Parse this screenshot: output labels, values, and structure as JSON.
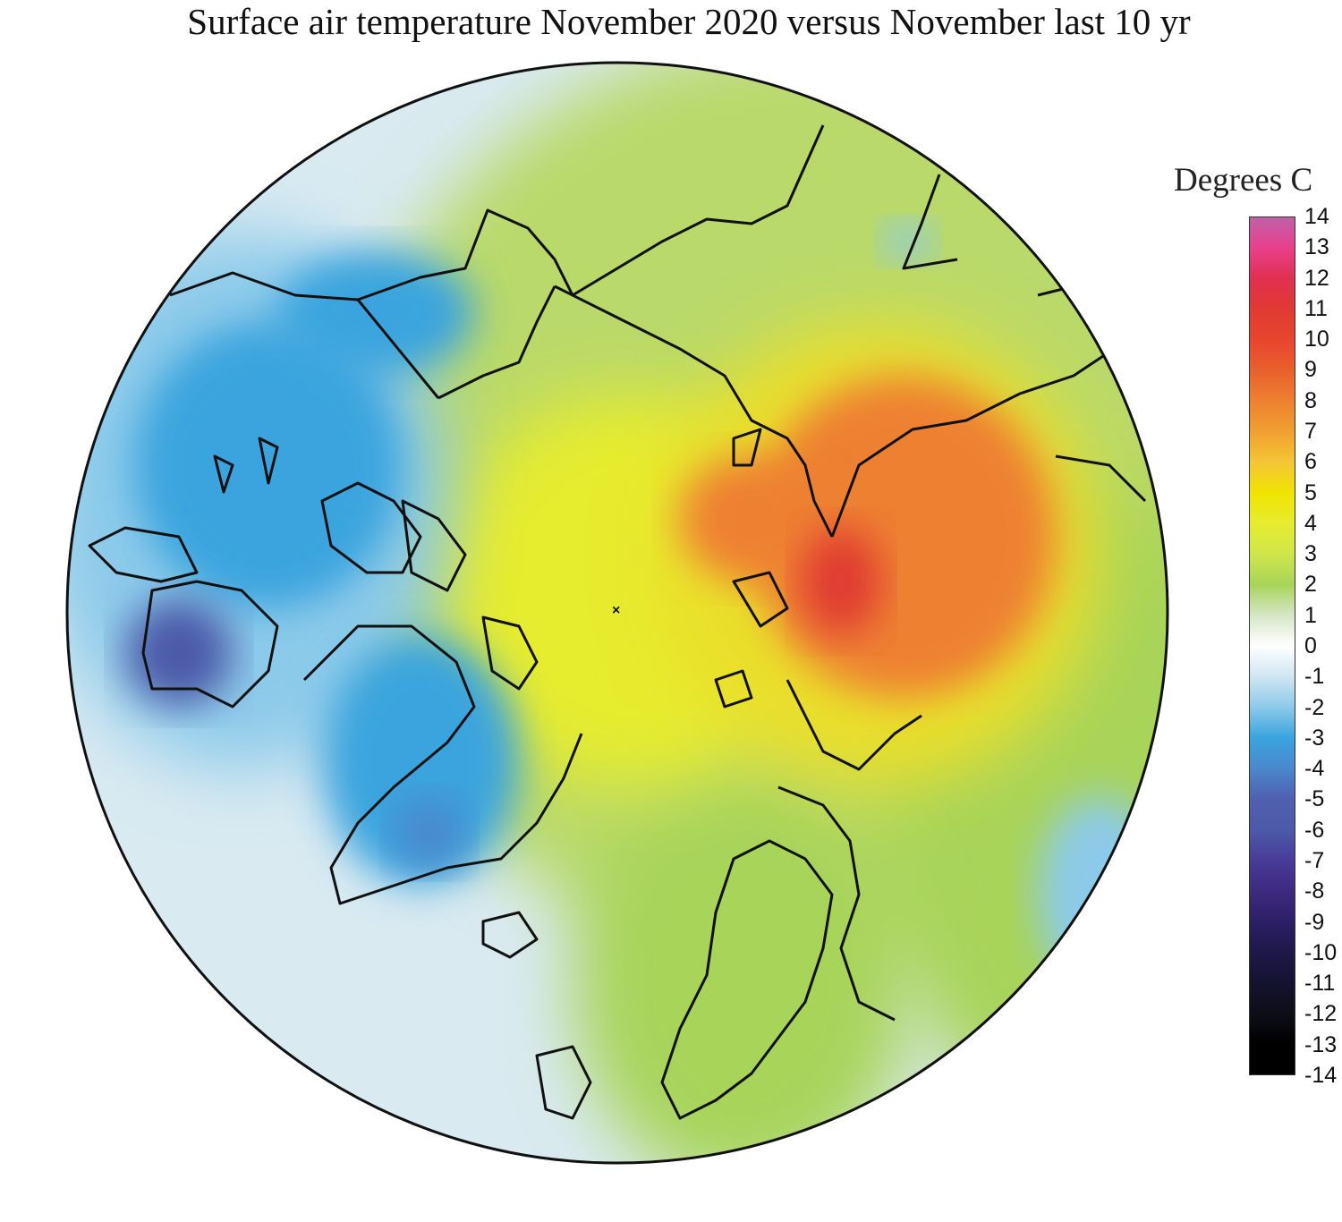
{
  "title": "Surface air temperature November 2020 versus November last 10 yr",
  "legend": {
    "title": "Degrees C",
    "ticks": [
      "14",
      "13",
      "12",
      "11",
      "10",
      "9",
      "8",
      "7",
      "6",
      "5",
      "4",
      "3",
      "2",
      "1",
      "0",
      "-1",
      "-2",
      "-3",
      "-4",
      "-5",
      "-6",
      "-7",
      "-8",
      "-9",
      "-10",
      "-11",
      "-12",
      "-13",
      "-14"
    ],
    "colors": [
      "#c060a8",
      "#e8408c",
      "#e03050",
      "#e03a32",
      "#e8452e",
      "#e8602c",
      "#ee8030",
      "#f0a030",
      "#f5c536",
      "#f0e400",
      "#e6ec2e",
      "#cfe64a",
      "#a8d45a",
      "#d5e6c6",
      "#ffffff",
      "#cfe6f2",
      "#8ccaea",
      "#3aa4de",
      "#4a88cc",
      "#5060b0",
      "#4c5aa8",
      "#483c98",
      "#3e2a80",
      "#2c1f66",
      "#1e1848",
      "#141230",
      "#0e0e18",
      "#000000",
      "#000000"
    ]
  }
}
